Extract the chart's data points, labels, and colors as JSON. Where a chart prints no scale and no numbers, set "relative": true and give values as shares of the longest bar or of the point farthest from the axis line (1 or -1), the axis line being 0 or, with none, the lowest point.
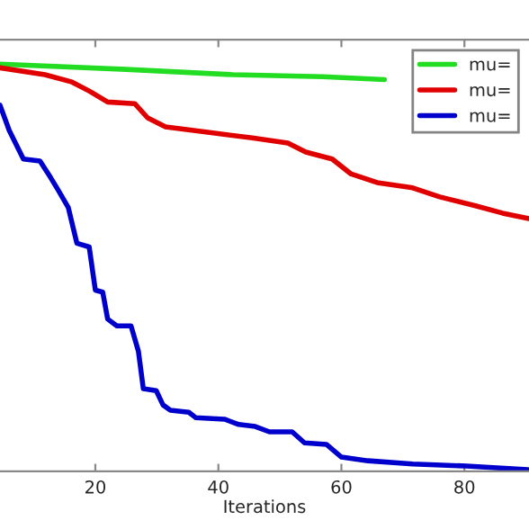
{
  "chart_data": {
    "type": "line",
    "xlabel": "Iterations",
    "relative": true,
    "xlim": [
      4.5,
      90.5
    ],
    "xticks": [
      20,
      40,
      60,
      80
    ],
    "tick_labels": "x",
    "grid": false,
    "legend": "top right",
    "marker": "none",
    "line_style": "solid",
    "series": [
      {
        "name": "mu=",
        "color": "#22dd22",
        "x": [
          4.5,
          25,
          42.4,
          57,
          67
        ],
        "values": [
          1.0,
          0.987,
          0.974,
          0.969,
          0.962
        ]
      },
      {
        "name": "mu=",
        "color": "#e00000",
        "x": [
          4.5,
          11.8,
          16.2,
          19,
          22,
          26.4,
          28.5,
          31.4,
          38,
          45.5,
          51.3,
          54.2,
          58.5,
          61.5,
          65.8,
          71.6,
          76,
          81.8,
          86.2,
          90.3
        ],
        "values": [
          0.991,
          0.974,
          0.956,
          0.934,
          0.907,
          0.903,
          0.868,
          0.846,
          0.833,
          0.819,
          0.806,
          0.784,
          0.767,
          0.731,
          0.709,
          0.696,
          0.674,
          0.652,
          0.634,
          0.621
        ]
      },
      {
        "name": "mu=",
        "color": "#0000cc",
        "x": [
          4.5,
          6,
          8.3,
          11,
          12.7,
          13.9,
          15.6,
          17,
          19,
          20,
          21.2,
          22,
          23.5,
          25.8,
          27,
          27.8,
          29.9,
          31,
          32.2,
          35.2,
          36.3,
          41,
          43.3,
          46,
          48.3,
          52,
          54,
          57.6,
          60,
          64.3,
          71.6,
          80.3,
          90.3
        ],
        "values": [
          0.899,
          0.837,
          0.767,
          0.762,
          0.722,
          0.692,
          0.648,
          0.56,
          0.551,
          0.445,
          0.44,
          0.374,
          0.357,
          0.357,
          0.295,
          0.203,
          0.198,
          0.163,
          0.15,
          0.145,
          0.132,
          0.128,
          0.115,
          0.11,
          0.097,
          0.097,
          0.07,
          0.066,
          0.035,
          0.026,
          0.018,
          0.013,
          0.004
        ]
      }
    ]
  }
}
